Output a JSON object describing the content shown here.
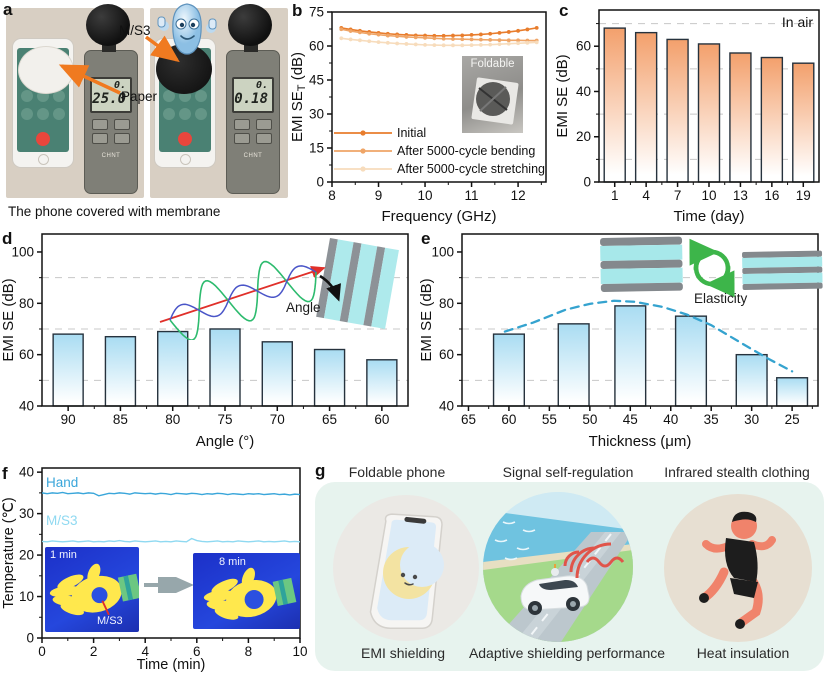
{
  "colors": {
    "accent_orange": "#f07a20",
    "bar_orange_top": "#f3a06c",
    "bar_blue_top": "#a9dcf2",
    "grid_dash": "#c8c8c8",
    "axis": "#111111",
    "mint_bg": "#e7f3ee",
    "thermal_bg": "#1f36cf",
    "curve_blue": "#35a3cf"
  },
  "panels": {
    "a": {
      "letter": "a",
      "label_ms3": "M/S3",
      "label_paper": "Paper",
      "caption": "The phone covered with membrane",
      "meter_brand": "CHNT",
      "meter_left": {
        "reading_top": "0.",
        "reading_bottom": "25.0"
      },
      "meter_right": {
        "reading_top": "0.",
        "reading_bottom": "0.18"
      }
    },
    "b": {
      "letter": "b",
      "inset_label": "Foldable",
      "chart_data": {
        "type": "line",
        "xlabel": "Frequency (GHz)",
        "ylabel": "EMI SE",
        "ylabel_sub": "T",
        "ylabel_unit": "(dB)",
        "xlim": [
          8,
          12.6
        ],
        "ylim": [
          0,
          75
        ],
        "xticks": [
          8,
          9,
          10,
          11,
          12
        ],
        "yticks": [
          0,
          15,
          30,
          45,
          60,
          75
        ],
        "legend_position": "lower-left",
        "x": [
          8.2,
          8.4,
          8.6,
          8.8,
          9.0,
          9.2,
          9.4,
          9.6,
          9.8,
          10.0,
          10.2,
          10.4,
          10.6,
          10.8,
          11.0,
          11.2,
          11.4,
          11.6,
          11.8,
          12.0,
          12.2,
          12.4
        ],
        "series": [
          {
            "name": "Initial",
            "color": "#e87d2d",
            "values": [
              68.0,
              67.3,
              66.7,
              66.2,
              65.8,
              65.4,
              65.1,
              64.9,
              64.7,
              64.6,
              64.5,
              64.5,
              64.6,
              64.7,
              64.9,
              65.1,
              65.4,
              65.8,
              66.2,
              66.7,
              67.3,
              68.0
            ]
          },
          {
            "name": "After 5000-cycle bending",
            "color": "#efa567",
            "values": [
              67.4,
              66.6,
              66.0,
              65.4,
              65.0,
              64.6,
              64.3,
              64.0,
              63.8,
              63.6,
              63.4,
              63.2,
              63.1,
              63.0,
              62.9,
              62.8,
              62.7,
              62.6,
              62.5,
              62.5,
              62.4,
              62.4
            ]
          },
          {
            "name": "After 5000-cycle stretching",
            "color": "#f7dcbc",
            "values": [
              63.4,
              62.9,
              62.5,
              62.1,
              61.7,
              61.4,
              61.1,
              60.9,
              60.7,
              60.5,
              60.4,
              60.3,
              60.3,
              60.3,
              60.4,
              60.5,
              60.6,
              60.8,
              61.0,
              61.2,
              61.4,
              61.6
            ]
          }
        ]
      }
    },
    "c": {
      "letter": "c",
      "annotation": "In air",
      "chart_data": {
        "type": "bar",
        "xlabel": "Time (day)",
        "ylabel": "EMI SE (dB)",
        "categories": [
          "1",
          "4",
          "7",
          "10",
          "13",
          "16",
          "19"
        ],
        "values": [
          68,
          66,
          63,
          61,
          57,
          55,
          52.5
        ],
        "ylim": [
          0,
          76
        ],
        "yticks": [
          0,
          20,
          40,
          60
        ],
        "gridlines": [
          10,
          30,
          50,
          70
        ],
        "bar_color_top": "#f3a06c"
      }
    },
    "d": {
      "letter": "d",
      "inset_label": "Angle",
      "chart_data": {
        "type": "bar",
        "xlabel": "Angle (°)",
        "ylabel": "EMI SE (dB)",
        "categories": [
          "90",
          "85",
          "80",
          "75",
          "70",
          "65",
          "60"
        ],
        "values": [
          68,
          67,
          69,
          70,
          65,
          62,
          58
        ],
        "ylim": [
          40,
          107
        ],
        "yticks": [
          40,
          60,
          80,
          100
        ],
        "gridlines": [
          50,
          70,
          90
        ],
        "bar_color_top": "#a9dcf2"
      }
    },
    "e": {
      "letter": "e",
      "inset_label": "Elasticity",
      "chart_data": {
        "type": "bar",
        "xlabel": "Thickness (μm)",
        "ylabel": "EMI SE (dB)",
        "x_numeric": true,
        "xlim": [
          65.8,
          21.8
        ],
        "xticks": [
          65,
          60,
          55,
          50,
          45,
          40,
          35,
          30,
          25
        ],
        "bar_centers": [
          60,
          52,
          45,
          37.5,
          30,
          25
        ],
        "bar_halfwidth": 1.9,
        "values": [
          68,
          72,
          79,
          75,
          60,
          51
        ],
        "ylim": [
          40,
          107
        ],
        "yticks": [
          40,
          60,
          80,
          100
        ],
        "gridlines": [
          50,
          70,
          90
        ],
        "bar_color_top": "#a9dcf2",
        "curve_color": "#35a3cf",
        "curve": [
          [
            60.5,
            69
          ],
          [
            57,
            72.5
          ],
          [
            53,
            77.5
          ],
          [
            50,
            79.8
          ],
          [
            47,
            81
          ],
          [
            44.5,
            80.6
          ],
          [
            41,
            78.6
          ],
          [
            38,
            75.6
          ],
          [
            35,
            71.5
          ],
          [
            31,
            64
          ],
          [
            28,
            58.5
          ],
          [
            25,
            53.5
          ]
        ]
      }
    },
    "f": {
      "letter": "f",
      "inset": {
        "left_time": "1 min",
        "right_time": "8 min",
        "sample_label": "M/S3"
      },
      "chart_data": {
        "type": "line",
        "xlabel": "Time (min)",
        "ylabel": "Temperature (℃)",
        "xlim": [
          0,
          10
        ],
        "ylim": [
          0,
          41
        ],
        "xticks": [
          0,
          2,
          4,
          6,
          8,
          10
        ],
        "yticks": [
          0,
          10,
          20,
          30,
          40
        ],
        "x_start": 0,
        "x_step": 0.2,
        "series": [
          {
            "name": "Hand",
            "color": "#3aa6da",
            "values": [
              35.0,
              34.8,
              35.0,
              34.9,
              35.1,
              34.8,
              34.9,
              35.0,
              34.8,
              35.0,
              34.9,
              34.3,
              34.6,
              34.9,
              34.8,
              35.0,
              34.9,
              34.7,
              35.0,
              34.9,
              34.8,
              34.9,
              34.7,
              34.9,
              34.8,
              34.6,
              34.9,
              34.8,
              34.7,
              34.9,
              34.8,
              34.6,
              34.8,
              34.7,
              34.9,
              34.8,
              34.6,
              34.8,
              34.7,
              34.6,
              34.8,
              34.7,
              34.8,
              34.6,
              34.7,
              34.8,
              34.6,
              34.7,
              34.5,
              34.7,
              34.6
            ]
          },
          {
            "name": "M/S3",
            "color": "#8fd9f1",
            "values": [
              23.3,
              23.2,
              23.4,
              23.3,
              23.2,
              23.3,
              23.4,
              23.2,
              23.3,
              23.4,
              23.2,
              23.3,
              23.2,
              23.4,
              23.3,
              23.5,
              23.3,
              23.2,
              23.4,
              23.3,
              23.2,
              23.3,
              23.4,
              23.2,
              23.3,
              23.2,
              23.4,
              23.3,
              23.2,
              24.0,
              23.5,
              23.3,
              23.2,
              23.3,
              23.4,
              23.2,
              23.3,
              23.2,
              23.4,
              23.3,
              23.2,
              23.3,
              23.4,
              23.2,
              23.3,
              23.2,
              23.3,
              23.4,
              23.2,
              23.3,
              23.2
            ]
          }
        ]
      }
    },
    "g": {
      "letter": "g",
      "items": [
        {
          "top": "Foldable phone",
          "bottom": "EMI shielding"
        },
        {
          "top": "Signal self-regulation",
          "bottom": "Adaptive shielding performance"
        },
        {
          "top": "Infrared stealth clothing",
          "bottom": "Heat insulation"
        }
      ]
    }
  }
}
